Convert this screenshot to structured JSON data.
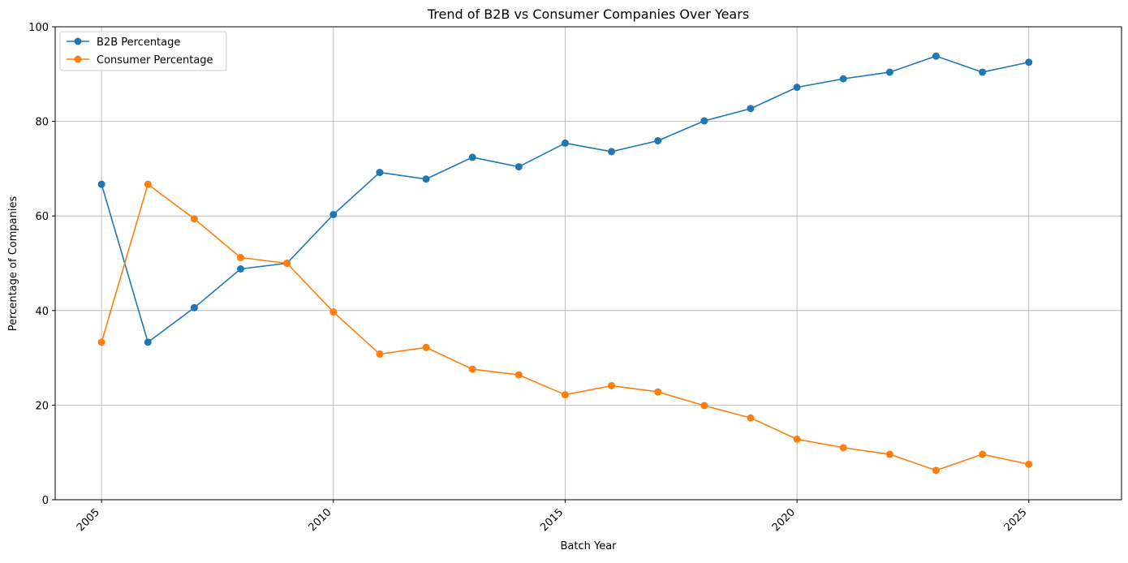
{
  "chart_data": {
    "type": "line",
    "title": "Trend of B2B vs Consumer Companies Over Years",
    "xlabel": "Batch Year",
    "ylabel": "Percentage of Companies",
    "xlim": [
      2004,
      2027
    ],
    "ylim": [
      0,
      100
    ],
    "xticks": [
      2005,
      2010,
      2015,
      2020,
      2025
    ],
    "yticks": [
      0,
      20,
      40,
      60,
      80,
      100
    ],
    "grid": true,
    "legend_position": "top-left",
    "x": [
      2005,
      2006,
      2007,
      2008,
      2009,
      2010,
      2011,
      2012,
      2013,
      2014,
      2015,
      2016,
      2017,
      2018,
      2019,
      2020,
      2021,
      2022,
      2023,
      2024,
      2025
    ],
    "series": [
      {
        "name": "B2B Percentage",
        "color": "#1f77b4",
        "values": [
          66.7,
          33.3,
          40.6,
          48.8,
          50.0,
          60.3,
          69.2,
          67.8,
          72.4,
          70.4,
          75.4,
          73.6,
          75.9,
          80.1,
          82.7,
          87.2,
          89.0,
          90.4,
          93.8,
          90.4,
          92.5
        ]
      },
      {
        "name": "Consumer Percentage",
        "color": "#ff7f0e",
        "values": [
          33.3,
          66.7,
          59.4,
          51.2,
          50.0,
          39.7,
          30.8,
          32.2,
          27.6,
          26.4,
          22.2,
          24.1,
          22.8,
          19.9,
          17.3,
          12.8,
          11.0,
          9.6,
          6.2,
          9.6,
          7.5
        ]
      }
    ]
  }
}
